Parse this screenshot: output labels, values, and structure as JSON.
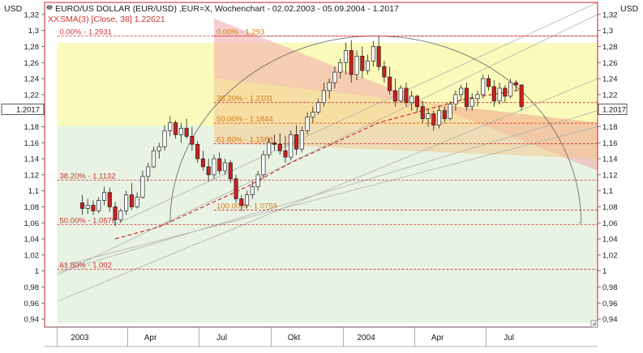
{
  "window": {
    "title": "EURO/US DOLLAR (EUR/USD) ,EUR=X, Wochenchart - 02.02.2003 - 05.09.2004 - 1.2017",
    "indicator": "SMA(3) [Close, 38] 1.22621",
    "indicator_mark": "XX",
    "title_icon": "chart-marker-icon",
    "resize_icon": "resize-grip-icon"
  },
  "colors": {
    "frame": "#cc2222",
    "up": "#ffffff",
    "down": "#cc1f1f",
    "outline": "#222222",
    "sma": "#cc1f1f",
    "fib_line": "#cc3333",
    "fib_text_left": "#cc3333",
    "fib_text_right": "#d07818",
    "channel_upper": "#f0a8a8",
    "channel_lower": "#f4c890",
    "zone_yellow": "#fafab4",
    "zone_green": "#e6f2e0",
    "fan": "#b0b0b0",
    "arc": "#707070",
    "price_box": "#ffffff"
  },
  "chart_data": {
    "type": "candlestick",
    "title": "EURO/US DOLLAR (EUR/USD) ,EUR=X, Wochenchart - 02.02.2003 - 05.09.2004 - 1.2017",
    "ylabel_left": "USD",
    "ylabel_right": "USD",
    "ylim": [
      0.93,
      1.335
    ],
    "yticks": [
      0.94,
      0.96,
      0.98,
      1,
      1.02,
      1.04,
      1.06,
      1.08,
      1.1,
      1.12,
      1.14,
      1.16,
      1.18,
      1.2,
      1.22,
      1.24,
      1.26,
      1.28,
      1.3,
      1.32
    ],
    "ytick_labels": [
      "0,94",
      "0,96",
      "0,98",
      "1",
      "1,02",
      "1,04",
      "1,06",
      "1,08",
      "1,1",
      "1,12",
      "1,14",
      "1,16",
      "1,18",
      "1,2",
      "1,22",
      "1,24",
      "1,26",
      "1,28",
      "1,3",
      "1,32"
    ],
    "xlim": [
      "2002-12-16",
      "2004-11-20"
    ],
    "xticks": [
      {
        "date": "2003-01-01",
        "label": "2003"
      },
      {
        "date": "2003-04-01",
        "label": "Apr"
      },
      {
        "date": "2003-07-01",
        "label": "Jul"
      },
      {
        "date": "2003-10-01",
        "label": "Okt"
      },
      {
        "date": "2004-01-01",
        "label": "2004"
      },
      {
        "date": "2004-04-01",
        "label": "Apr"
      },
      {
        "date": "2004-07-01",
        "label": "Jul"
      }
    ],
    "last_price": {
      "value": 1.2017,
      "label": "1.2017"
    },
    "candles": [
      {
        "date": "2003-02-02",
        "o": 1.085,
        "h": 1.095,
        "l": 1.07,
        "c": 1.078
      },
      {
        "date": "2003-02-09",
        "o": 1.078,
        "h": 1.09,
        "l": 1.071,
        "c": 1.082
      },
      {
        "date": "2003-02-16",
        "o": 1.082,
        "h": 1.088,
        "l": 1.07,
        "c": 1.075
      },
      {
        "date": "2003-02-23",
        "o": 1.075,
        "h": 1.092,
        "l": 1.072,
        "c": 1.088
      },
      {
        "date": "2003-03-02",
        "o": 1.088,
        "h": 1.105,
        "l": 1.082,
        "c": 1.098
      },
      {
        "date": "2003-03-09",
        "o": 1.098,
        "h": 1.104,
        "l": 1.074,
        "c": 1.08
      },
      {
        "date": "2003-03-16",
        "o": 1.08,
        "h": 1.086,
        "l": 1.056,
        "c": 1.064
      },
      {
        "date": "2003-03-23",
        "o": 1.064,
        "h": 1.078,
        "l": 1.06,
        "c": 1.075
      },
      {
        "date": "2003-03-30",
        "o": 1.075,
        "h": 1.1,
        "l": 1.07,
        "c": 1.095
      },
      {
        "date": "2003-04-06",
        "o": 1.095,
        "h": 1.11,
        "l": 1.076,
        "c": 1.08
      },
      {
        "date": "2003-04-13",
        "o": 1.08,
        "h": 1.098,
        "l": 1.078,
        "c": 1.092
      },
      {
        "date": "2003-04-20",
        "o": 1.092,
        "h": 1.125,
        "l": 1.09,
        "c": 1.118
      },
      {
        "date": "2003-04-27",
        "o": 1.118,
        "h": 1.135,
        "l": 1.112,
        "c": 1.13
      },
      {
        "date": "2003-05-04",
        "o": 1.13,
        "h": 1.155,
        "l": 1.128,
        "c": 1.15
      },
      {
        "date": "2003-05-11",
        "o": 1.15,
        "h": 1.16,
        "l": 1.14,
        "c": 1.155
      },
      {
        "date": "2003-05-18",
        "o": 1.155,
        "h": 1.182,
        "l": 1.15,
        "c": 1.175
      },
      {
        "date": "2003-05-25",
        "o": 1.175,
        "h": 1.193,
        "l": 1.168,
        "c": 1.185
      },
      {
        "date": "2003-06-01",
        "o": 1.185,
        "h": 1.188,
        "l": 1.165,
        "c": 1.17
      },
      {
        "date": "2003-06-08",
        "o": 1.17,
        "h": 1.185,
        "l": 1.16,
        "c": 1.178
      },
      {
        "date": "2003-06-15",
        "o": 1.178,
        "h": 1.19,
        "l": 1.165,
        "c": 1.168
      },
      {
        "date": "2003-06-22",
        "o": 1.168,
        "h": 1.18,
        "l": 1.15,
        "c": 1.158
      },
      {
        "date": "2003-06-29",
        "o": 1.158,
        "h": 1.162,
        "l": 1.135,
        "c": 1.14
      },
      {
        "date": "2003-07-06",
        "o": 1.14,
        "h": 1.15,
        "l": 1.125,
        "c": 1.13
      },
      {
        "date": "2003-07-13",
        "o": 1.13,
        "h": 1.14,
        "l": 1.112,
        "c": 1.12
      },
      {
        "date": "2003-07-20",
        "o": 1.12,
        "h": 1.145,
        "l": 1.115,
        "c": 1.14
      },
      {
        "date": "2003-07-27",
        "o": 1.14,
        "h": 1.148,
        "l": 1.12,
        "c": 1.125
      },
      {
        "date": "2003-08-03",
        "o": 1.125,
        "h": 1.14,
        "l": 1.12,
        "c": 1.135
      },
      {
        "date": "2003-08-10",
        "o": 1.135,
        "h": 1.138,
        "l": 1.11,
        "c": 1.115
      },
      {
        "date": "2003-08-17",
        "o": 1.115,
        "h": 1.12,
        "l": 1.085,
        "c": 1.09
      },
      {
        "date": "2003-08-24",
        "o": 1.09,
        "h": 1.095,
        "l": 1.075,
        "c": 1.082
      },
      {
        "date": "2003-08-31",
        "o": 1.082,
        "h": 1.1,
        "l": 1.078,
        "c": 1.095
      },
      {
        "date": "2003-09-07",
        "o": 1.095,
        "h": 1.112,
        "l": 1.09,
        "c": 1.105
      },
      {
        "date": "2003-09-14",
        "o": 1.105,
        "h": 1.125,
        "l": 1.1,
        "c": 1.12
      },
      {
        "date": "2003-09-21",
        "o": 1.12,
        "h": 1.15,
        "l": 1.115,
        "c": 1.145
      },
      {
        "date": "2003-09-28",
        "o": 1.145,
        "h": 1.165,
        "l": 1.14,
        "c": 1.16
      },
      {
        "date": "2003-10-05",
        "o": 1.16,
        "h": 1.17,
        "l": 1.15,
        "c": 1.158
      },
      {
        "date": "2003-10-12",
        "o": 1.158,
        "h": 1.172,
        "l": 1.145,
        "c": 1.15
      },
      {
        "date": "2003-10-19",
        "o": 1.15,
        "h": 1.168,
        "l": 1.135,
        "c": 1.142
      },
      {
        "date": "2003-10-26",
        "o": 1.142,
        "h": 1.175,
        "l": 1.138,
        "c": 1.17
      },
      {
        "date": "2003-11-02",
        "o": 1.17,
        "h": 1.182,
        "l": 1.145,
        "c": 1.152
      },
      {
        "date": "2003-11-09",
        "o": 1.152,
        "h": 1.18,
        "l": 1.148,
        "c": 1.175
      },
      {
        "date": "2003-11-16",
        "o": 1.175,
        "h": 1.198,
        "l": 1.17,
        "c": 1.192
      },
      {
        "date": "2003-11-23",
        "o": 1.192,
        "h": 1.205,
        "l": 1.185,
        "c": 1.198
      },
      {
        "date": "2003-11-30",
        "o": 1.198,
        "h": 1.215,
        "l": 1.195,
        "c": 1.21
      },
      {
        "date": "2003-12-07",
        "o": 1.21,
        "h": 1.235,
        "l": 1.205,
        "c": 1.225
      },
      {
        "date": "2003-12-14",
        "o": 1.225,
        "h": 1.24,
        "l": 1.215,
        "c": 1.235
      },
      {
        "date": "2003-12-21",
        "o": 1.235,
        "h": 1.255,
        "l": 1.228,
        "c": 1.248
      },
      {
        "date": "2003-12-28",
        "o": 1.248,
        "h": 1.265,
        "l": 1.24,
        "c": 1.26
      },
      {
        "date": "2004-01-04",
        "o": 1.26,
        "h": 1.285,
        "l": 1.245,
        "c": 1.275
      },
      {
        "date": "2004-01-11",
        "o": 1.275,
        "h": 1.288,
        "l": 1.235,
        "c": 1.245
      },
      {
        "date": "2004-01-18",
        "o": 1.245,
        "h": 1.275,
        "l": 1.238,
        "c": 1.268
      },
      {
        "date": "2004-01-25",
        "o": 1.268,
        "h": 1.28,
        "l": 1.24,
        "c": 1.25
      },
      {
        "date": "2004-02-01",
        "o": 1.25,
        "h": 1.27,
        "l": 1.245,
        "c": 1.262
      },
      {
        "date": "2004-02-08",
        "o": 1.262,
        "h": 1.287,
        "l": 1.255,
        "c": 1.28
      },
      {
        "date": "2004-02-15",
        "o": 1.28,
        "h": 1.293,
        "l": 1.25,
        "c": 1.255
      },
      {
        "date": "2004-02-22",
        "o": 1.255,
        "h": 1.262,
        "l": 1.235,
        "c": 1.242
      },
      {
        "date": "2004-02-29",
        "o": 1.242,
        "h": 1.255,
        "l": 1.22,
        "c": 1.225
      },
      {
        "date": "2004-03-07",
        "o": 1.225,
        "h": 1.24,
        "l": 1.205,
        "c": 1.212
      },
      {
        "date": "2004-03-14",
        "o": 1.212,
        "h": 1.232,
        "l": 1.21,
        "c": 1.228
      },
      {
        "date": "2004-03-21",
        "o": 1.228,
        "h": 1.235,
        "l": 1.205,
        "c": 1.21
      },
      {
        "date": "2004-03-28",
        "o": 1.21,
        "h": 1.225,
        "l": 1.2,
        "c": 1.218
      },
      {
        "date": "2004-04-04",
        "o": 1.218,
        "h": 1.22,
        "l": 1.198,
        "c": 1.205
      },
      {
        "date": "2004-04-11",
        "o": 1.205,
        "h": 1.212,
        "l": 1.185,
        "c": 1.19
      },
      {
        "date": "2004-04-18",
        "o": 1.19,
        "h": 1.202,
        "l": 1.18,
        "c": 1.196
      },
      {
        "date": "2004-04-25",
        "o": 1.196,
        "h": 1.2,
        "l": 1.175,
        "c": 1.182
      },
      {
        "date": "2004-05-02",
        "o": 1.182,
        "h": 1.205,
        "l": 1.178,
        "c": 1.2
      },
      {
        "date": "2004-05-09",
        "o": 1.2,
        "h": 1.205,
        "l": 1.185,
        "c": 1.19
      },
      {
        "date": "2004-05-16",
        "o": 1.19,
        "h": 1.212,
        "l": 1.188,
        "c": 1.208
      },
      {
        "date": "2004-05-23",
        "o": 1.208,
        "h": 1.225,
        "l": 1.2,
        "c": 1.22
      },
      {
        "date": "2004-05-30",
        "o": 1.22,
        "h": 1.232,
        "l": 1.212,
        "c": 1.228
      },
      {
        "date": "2004-06-06",
        "o": 1.228,
        "h": 1.235,
        "l": 1.2,
        "c": 1.205
      },
      {
        "date": "2004-06-13",
        "o": 1.205,
        "h": 1.222,
        "l": 1.2,
        "c": 1.215
      },
      {
        "date": "2004-06-20",
        "o": 1.215,
        "h": 1.225,
        "l": 1.205,
        "c": 1.22
      },
      {
        "date": "2004-06-27",
        "o": 1.22,
        "h": 1.245,
        "l": 1.215,
        "c": 1.24
      },
      {
        "date": "2004-07-04",
        "o": 1.24,
        "h": 1.245,
        "l": 1.225,
        "c": 1.23
      },
      {
        "date": "2004-07-11",
        "o": 1.23,
        "h": 1.238,
        "l": 1.205,
        "c": 1.212
      },
      {
        "date": "2004-07-18",
        "o": 1.212,
        "h": 1.235,
        "l": 1.208,
        "c": 1.228
      },
      {
        "date": "2004-07-25",
        "o": 1.228,
        "h": 1.232,
        "l": 1.21,
        "c": 1.218
      },
      {
        "date": "2004-08-01",
        "o": 1.218,
        "h": 1.24,
        "l": 1.215,
        "c": 1.235
      },
      {
        "date": "2004-08-08",
        "o": 1.235,
        "h": 1.238,
        "l": 1.225,
        "c": 1.232
      },
      {
        "date": "2004-08-15",
        "o": 1.232,
        "h": 1.233,
        "l": 1.2,
        "c": 1.205
      }
    ],
    "sma": {
      "name": "SMA(3) [Close, 38]",
      "points": [
        {
          "date": "2003-03-16",
          "v": 1.04
        },
        {
          "date": "2003-05-11",
          "v": 1.055
        },
        {
          "date": "2003-07-06",
          "v": 1.08
        },
        {
          "date": "2003-08-31",
          "v": 1.105
        },
        {
          "date": "2003-10-26",
          "v": 1.135
        },
        {
          "date": "2003-12-21",
          "v": 1.16
        },
        {
          "date": "2004-02-15",
          "v": 1.185
        },
        {
          "date": "2004-04-11",
          "v": 1.2
        },
        {
          "date": "2004-06-06",
          "v": 1.215
        },
        {
          "date": "2004-08-15",
          "v": 1.226
        }
      ]
    },
    "fib_left": {
      "x_start": "2003-01-01",
      "x_end": "2004-11-20",
      "levels": [
        {
          "value": 1.2931,
          "label": "0.00% - 1.2931"
        },
        {
          "value": 1.1132,
          "label": "38.20% - 1.1132"
        },
        {
          "value": 1.0576,
          "label": "50.00% - 1.0576"
        },
        {
          "value": 1.002,
          "label": "61.80% - 1.002"
        }
      ]
    },
    "fib_right": {
      "x_start": "2003-07-20",
      "x_end": "2004-11-20",
      "levels": [
        {
          "value": 1.293,
          "label": "0.00% - 1.293"
        },
        {
          "value": 1.2101,
          "label": "38.20% - 1.2101"
        },
        {
          "value": 1.1844,
          "label": "50.00% - 1.1844"
        },
        {
          "value": 1.1588,
          "label": "61.80% - 1.1588"
        },
        {
          "value": 1.0759,
          "label": "100.00% - 1.0759"
        }
      ]
    },
    "zones": [
      {
        "kind": "yellow",
        "x_start": "2003-01-01",
        "x_end": "2004-11-20",
        "y_top": 1.2845,
        "y_bottom": 1.181
      },
      {
        "kind": "green",
        "x_start": "2003-01-01",
        "x_end": "2004-11-20",
        "y_top": 1.181,
        "y_bottom": 0.935
      }
    ],
    "channel": {
      "upper": {
        "x_start": "2003-07-20",
        "x_end": "2004-11-20",
        "y_start_top": 1.315,
        "y_end_top": 1.125,
        "y_start_bottom": 1.24,
        "y_end_bottom": 1.185
      },
      "lower": {
        "x_start": "2003-07-20",
        "x_end": "2004-11-20",
        "y_start_top": 1.24,
        "y_end_top": 1.185,
        "y_start_bottom": 1.16,
        "y_end_bottom": 1.14
      }
    },
    "fan_lines": [
      {
        "x0": "2003-01-01",
        "y0": 0.962,
        "x1": "2004-11-20",
        "y1": 1.24
      },
      {
        "x0": "2003-01-01",
        "y0": 0.998,
        "x1": "2004-11-20",
        "y1": 1.2
      },
      {
        "x0": "2003-01-01",
        "y0": 1.005,
        "x1": "2004-11-20",
        "y1": 1.18
      },
      {
        "x0": "2003-01-01",
        "y0": 0.995,
        "x1": "2004-11-20",
        "y1": 1.32
      },
      {
        "x0": "2003-03-16",
        "y0": 1.058,
        "x1": "2004-11-20",
        "y1": 1.335
      }
    ],
    "arc": {
      "x_start": "2003-05-25",
      "x_end": "2004-10-30",
      "y_base": 1.06,
      "y_peak": 1.2931
    }
  }
}
